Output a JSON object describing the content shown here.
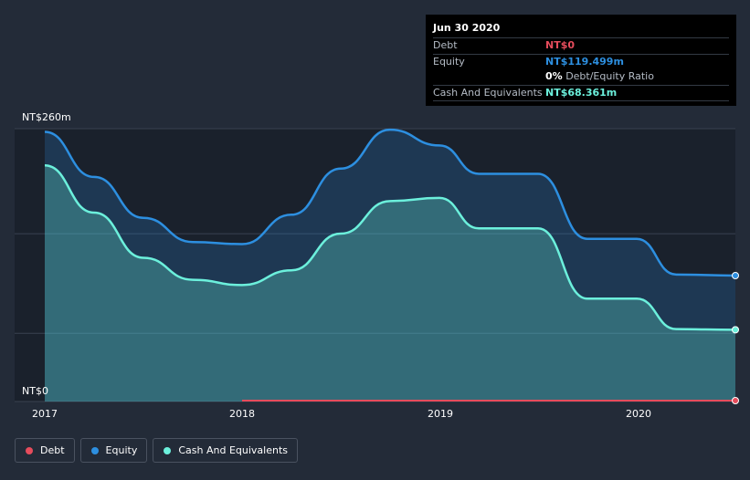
{
  "tooltip": {
    "date": "Jun 30 2020",
    "debt_label": "Debt",
    "debt_value": "NT$0",
    "equity_label": "Equity",
    "equity_value": "NT$119.499m",
    "ratio_value": "0%",
    "ratio_label": "Debt/Equity Ratio",
    "cash_label": "Cash And Equivalents",
    "cash_value": "NT$68.361m"
  },
  "colors": {
    "background": "#232b38",
    "plot_background": "#1a212c",
    "debt": "#e64c5c",
    "equity": "#2d8fe0",
    "cash": "#6cf0dc"
  },
  "chart_data": {
    "type": "area",
    "ylabel_top": "NT$260m",
    "ylabel_bottom": "NT$0",
    "ylim": [
      0,
      260
    ],
    "xlim": [
      2017.0,
      2020.5
    ],
    "x_ticks": [
      "2017",
      "2018",
      "2019",
      "2020"
    ],
    "grid": true,
    "legend_position": "bottom-left",
    "series": [
      {
        "name": "Equity",
        "points": [
          [
            2017.0,
            257
          ],
          [
            2017.25,
            214
          ],
          [
            2017.5,
            175
          ],
          [
            2017.75,
            152
          ],
          [
            2018.0,
            150
          ],
          [
            2018.25,
            178
          ],
          [
            2018.5,
            222
          ],
          [
            2018.75,
            259
          ],
          [
            2019.0,
            244
          ],
          [
            2019.2,
            217
          ],
          [
            2019.5,
            217
          ],
          [
            2019.75,
            155
          ],
          [
            2020.0,
            155
          ],
          [
            2020.2,
            121
          ],
          [
            2020.5,
            120
          ]
        ]
      },
      {
        "name": "Cash And Equivalents",
        "points": [
          [
            2017.0,
            225
          ],
          [
            2017.25,
            180
          ],
          [
            2017.5,
            137
          ],
          [
            2017.75,
            116
          ],
          [
            2018.0,
            111
          ],
          [
            2018.25,
            125
          ],
          [
            2018.5,
            160
          ],
          [
            2018.75,
            191
          ],
          [
            2019.0,
            194
          ],
          [
            2019.2,
            165
          ],
          [
            2019.5,
            165
          ],
          [
            2019.75,
            98
          ],
          [
            2020.0,
            98
          ],
          [
            2020.2,
            69
          ],
          [
            2020.5,
            68.361
          ]
        ]
      },
      {
        "name": "Debt",
        "points": [
          [
            2018.0,
            0
          ],
          [
            2020.5,
            0
          ]
        ]
      }
    ]
  },
  "legend": {
    "debt": "Debt",
    "equity": "Equity",
    "cash": "Cash And Equivalents"
  }
}
